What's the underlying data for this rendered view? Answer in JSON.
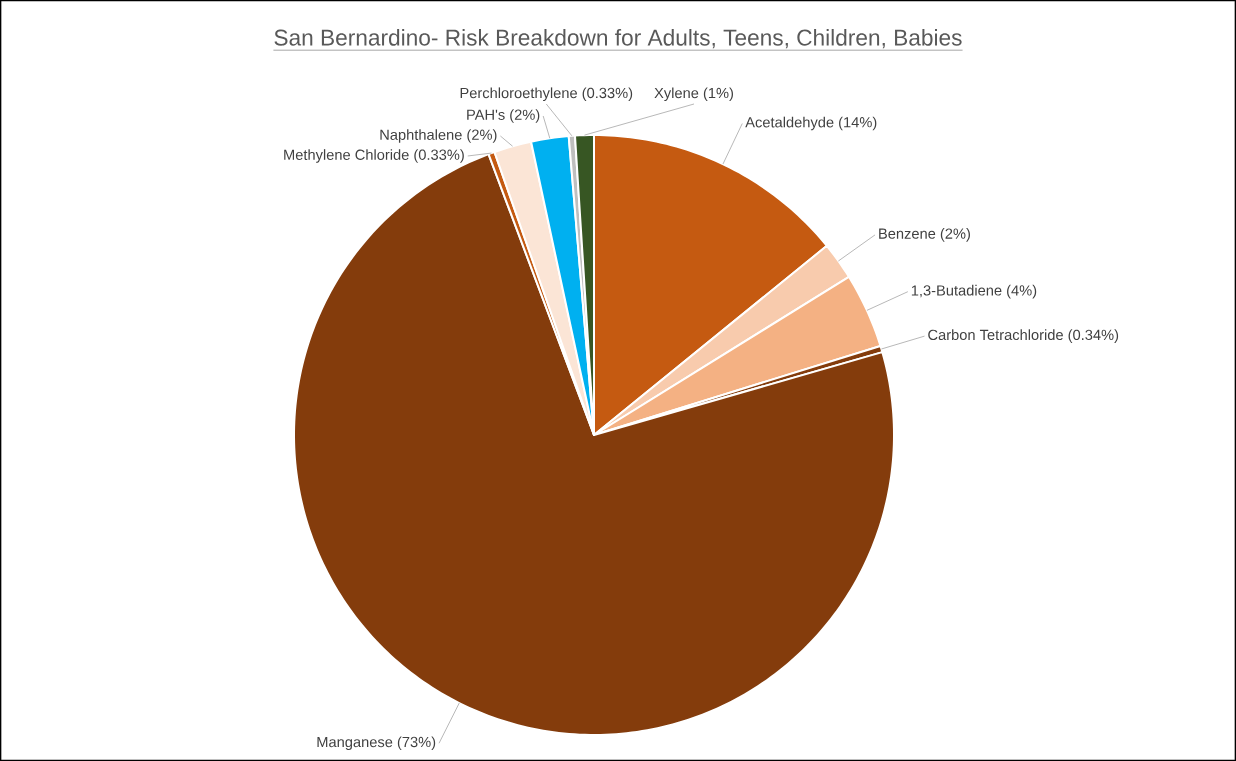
{
  "chart_data": {
    "type": "pie",
    "title": "San Bernardino- Risk Breakdown for Adults, Teens, Children, Babies",
    "categories": [
      "Acetaldehyde (14%)",
      "Benzene (2%)",
      "1,3-Butadiene (4%)",
      "Carbon Tetrachloride (0.34%)",
      "Manganese (73%)",
      "Methylene Chloride (0.33%)",
      "Naphthalene (2%)",
      "PAH's (2%)",
      "Perchloroethylene (0.33%)",
      "Xylene (1%)"
    ],
    "values": [
      14,
      2,
      4,
      0.34,
      73,
      0.33,
      2,
      2,
      0.33,
      1
    ],
    "colors": [
      "#c55a11",
      "#f8cbad",
      "#f4b183",
      "#843c0c",
      "#843c0c",
      "#c55a11",
      "#fbe5d6",
      "#00b0f0",
      "#bfbfbf",
      "#375623"
    ]
  }
}
